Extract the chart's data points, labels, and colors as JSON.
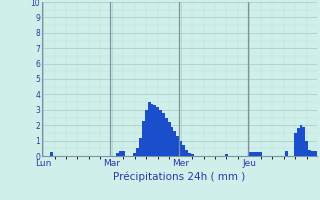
{
  "title": "",
  "xlabel": "Précipitations 24h ( mm )",
  "ylabel": "",
  "background_color": "#cff0ea",
  "bar_color": "#1a4ecc",
  "grid_major_color": "#a8c8c0",
  "grid_minor_color": "#c0dcd8",
  "vline_color": "#8090a0",
  "text_color": "#3333aa",
  "ylim": [
    0,
    10
  ],
  "yticks": [
    0,
    1,
    2,
    3,
    4,
    5,
    6,
    7,
    8,
    9,
    10
  ],
  "day_labels": [
    "Lun",
    "Mar",
    "Mer",
    "Jeu"
  ],
  "n_bars": 96,
  "bar_values": [
    0,
    0,
    0,
    0.25,
    0,
    0,
    0,
    0,
    0,
    0,
    0,
    0,
    0,
    0,
    0,
    0,
    0,
    0,
    0,
    0,
    0,
    0,
    0,
    0,
    0,
    0,
    0.2,
    0.3,
    0.3,
    0,
    0,
    0,
    0.2,
    0.5,
    1.2,
    2.3,
    3.0,
    3.5,
    3.4,
    3.3,
    3.2,
    3.0,
    2.8,
    2.5,
    2.2,
    1.9,
    1.6,
    1.3,
    1.0,
    0.7,
    0.4,
    0.2,
    0.1,
    0,
    0,
    0,
    0,
    0,
    0,
    0,
    0,
    0,
    0,
    0,
    0.15,
    0,
    0,
    0,
    0,
    0,
    0,
    0,
    0.25,
    0.25,
    0.25,
    0.25,
    0.25,
    0,
    0,
    0,
    0,
    0,
    0,
    0,
    0,
    0.3,
    0,
    0,
    1.5,
    1.8,
    2.0,
    1.9,
    1.0,
    0.4,
    0.35,
    0.3
  ]
}
